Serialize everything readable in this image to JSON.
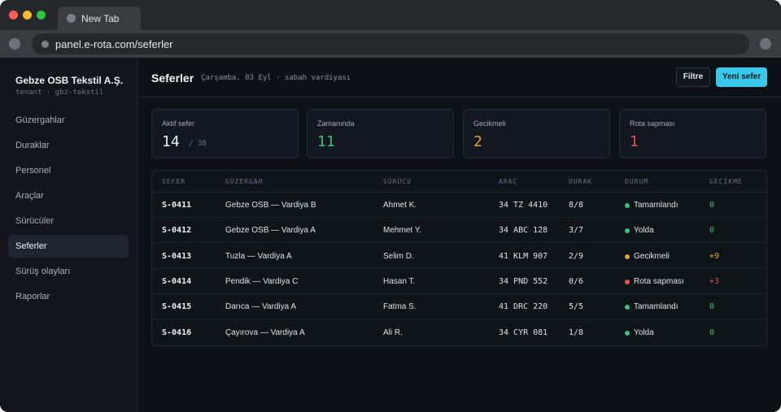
{
  "browser": {
    "tab_title": "New Tab",
    "url": "panel.e-rota.com/seferler"
  },
  "sidebar": {
    "org_name": "Gebze OSB Tekstil A.Ş.",
    "org_sub": "tenant · gbz-tekstil",
    "items": [
      {
        "label": "Güzergahlar",
        "active": false
      },
      {
        "label": "Duraklar",
        "active": false
      },
      {
        "label": "Personel",
        "active": false
      },
      {
        "label": "Araçlar",
        "active": false
      },
      {
        "label": "Sürücüler",
        "active": false
      },
      {
        "label": "Seferler",
        "active": true
      },
      {
        "label": "Sürüş olayları",
        "active": false
      },
      {
        "label": "Raporlar",
        "active": false
      }
    ]
  },
  "header": {
    "title": "Seferler",
    "subtitle": "Çarşamba, 03 Eyl · sabah vardiyası",
    "filter_label": "Filtre",
    "new_label": "Yeni sefer"
  },
  "stats": [
    {
      "label": "Aktif sefer",
      "value": "14",
      "of": "/ 38",
      "color": "#eef0f3"
    },
    {
      "label": "Zamanında",
      "value": "11",
      "color": "#3fbf7f"
    },
    {
      "label": "Gecikmeli",
      "value": "2",
      "color": "#e0a33a"
    },
    {
      "label": "Rota sapması",
      "value": "1",
      "color": "#e5534b"
    }
  ],
  "table": {
    "headers": [
      "SEFER",
      "GÜZERGAH",
      "SÜRÜCÜ",
      "ARAÇ",
      "DURAK",
      "DURUM",
      "GECİKME"
    ],
    "rows": [
      {
        "id": "S-0411",
        "route": "Gebze OSB — Vardiya B",
        "driver": "Ahmet K.",
        "vehicle": "34 TZ 4410",
        "stops": "8/8",
        "status": "Tamamlandı",
        "status_color": "#3fbf7f",
        "delay": "0",
        "delay_color": "#3fbf7f"
      },
      {
        "id": "S-0412",
        "route": "Gebze OSB — Vardiya A",
        "driver": "Mehmet Y.",
        "vehicle": "34 ABC 128",
        "stops": "3/7",
        "status": "Yolda",
        "status_color": "#3fbf7f",
        "delay": "0",
        "delay_color": "#3fbf7f"
      },
      {
        "id": "S-0413",
        "route": "Tuzla — Vardiya A",
        "driver": "Selim D.",
        "vehicle": "41 KLM 907",
        "stops": "2/9",
        "status": "Gecikmeli",
        "status_color": "#e0a33a",
        "delay": "+9",
        "delay_color": "#e0a33a"
      },
      {
        "id": "S-0414",
        "route": "Pendik — Vardiya C",
        "driver": "Hasan T.",
        "vehicle": "34 PND 552",
        "stops": "0/6",
        "status": "Rota sapması",
        "status_color": "#e5534b",
        "delay": "+3",
        "delay_color": "#e5534b"
      },
      {
        "id": "S-0415",
        "route": "Darıca — Vardiya A",
        "driver": "Fatma S.",
        "vehicle": "41 DRC 220",
        "stops": "5/5",
        "status": "Tamamlandı",
        "status_color": "#3fbf7f",
        "delay": "0",
        "delay_color": "#3fbf7f"
      },
      {
        "id": "S-0416",
        "route": "Çayırova — Vardiya A",
        "driver": "Ali R.",
        "vehicle": "34 CYR 081",
        "stops": "1/8",
        "status": "Yolda",
        "status_color": "#3fbf7f",
        "delay": "0",
        "delay_color": "#3fbf7f"
      }
    ]
  }
}
